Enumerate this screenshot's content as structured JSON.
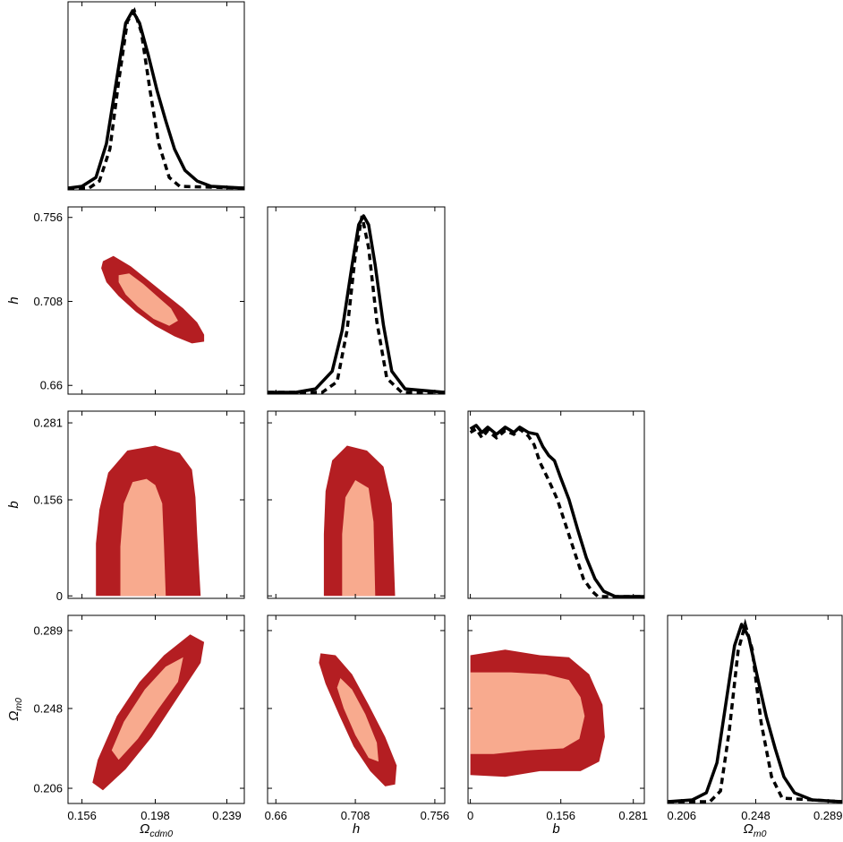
{
  "chart_data": {
    "type": "corner",
    "parameters": [
      {
        "id": "ocdm",
        "label_main": "Ω",
        "label_sub": "cdm0",
        "ticks": [
          0.156,
          0.198,
          0.239
        ],
        "tick_labels": [
          "0.156",
          "0.198",
          "0.239"
        ],
        "range": [
          0.148,
          0.249
        ]
      },
      {
        "id": "h",
        "label_main": "h",
        "label_sub": "",
        "ticks": [
          0.66,
          0.708,
          0.756
        ],
        "tick_labels": [
          "0.66",
          "0.708",
          "0.756"
        ],
        "range": [
          0.655,
          0.762
        ]
      },
      {
        "id": "b",
        "label_main": "b",
        "label_sub": "",
        "ticks": [
          0,
          0.156,
          0.281
        ],
        "tick_labels": [
          "0",
          "0.156",
          "0.281"
        ],
        "range": [
          -0.004,
          0.3
        ]
      },
      {
        "id": "om",
        "label_main": "Ω",
        "label_sub": "m0",
        "ticks": [
          0.206,
          0.248,
          0.289
        ],
        "tick_labels": [
          "0.206",
          "0.248",
          "0.289"
        ],
        "range": [
          0.198,
          0.297
        ]
      }
    ],
    "diagonal": [
      {
        "param": "ocdm",
        "solid": [
          [
            0.148,
            0.0
          ],
          [
            0.156,
            0.01
          ],
          [
            0.164,
            0.06
          ],
          [
            0.17,
            0.25
          ],
          [
            0.176,
            0.62
          ],
          [
            0.181,
            0.93
          ],
          [
            0.185,
            1.0
          ],
          [
            0.189,
            0.93
          ],
          [
            0.194,
            0.75
          ],
          [
            0.199,
            0.55
          ],
          [
            0.204,
            0.38
          ],
          [
            0.209,
            0.22
          ],
          [
            0.215,
            0.1
          ],
          [
            0.222,
            0.04
          ],
          [
            0.23,
            0.01
          ],
          [
            0.249,
            0.0
          ]
        ],
        "dashed": [
          [
            0.148,
            0.0
          ],
          [
            0.16,
            0.0
          ],
          [
            0.166,
            0.04
          ],
          [
            0.172,
            0.22
          ],
          [
            0.177,
            0.6
          ],
          [
            0.182,
            0.94
          ],
          [
            0.186,
            1.0
          ],
          [
            0.19,
            0.88
          ],
          [
            0.195,
            0.55
          ],
          [
            0.2,
            0.25
          ],
          [
            0.206,
            0.06
          ],
          [
            0.212,
            0.01
          ],
          [
            0.249,
            0.0
          ]
        ]
      },
      {
        "param": "h",
        "solid": [
          [
            0.655,
            0.0
          ],
          [
            0.672,
            0.0
          ],
          [
            0.684,
            0.02
          ],
          [
            0.694,
            0.12
          ],
          [
            0.7,
            0.35
          ],
          [
            0.706,
            0.72
          ],
          [
            0.71,
            0.95
          ],
          [
            0.713,
            1.0
          ],
          [
            0.716,
            0.95
          ],
          [
            0.72,
            0.72
          ],
          [
            0.725,
            0.38
          ],
          [
            0.73,
            0.12
          ],
          [
            0.738,
            0.02
          ],
          [
            0.762,
            0.0
          ]
        ],
        "dashed": [
          [
            0.655,
            0.0
          ],
          [
            0.688,
            0.0
          ],
          [
            0.697,
            0.06
          ],
          [
            0.703,
            0.35
          ],
          [
            0.708,
            0.78
          ],
          [
            0.712,
            1.0
          ],
          [
            0.716,
            0.82
          ],
          [
            0.721,
            0.4
          ],
          [
            0.727,
            0.08
          ],
          [
            0.736,
            0.0
          ],
          [
            0.762,
            0.0
          ]
        ]
      },
      {
        "param": "b",
        "solid": [
          [
            0.0,
            0.95
          ],
          [
            0.01,
            0.97
          ],
          [
            0.02,
            0.93
          ],
          [
            0.03,
            0.96
          ],
          [
            0.045,
            0.92
          ],
          [
            0.06,
            0.96
          ],
          [
            0.075,
            0.93
          ],
          [
            0.085,
            0.96
          ],
          [
            0.1,
            0.93
          ],
          [
            0.115,
            0.92
          ],
          [
            0.125,
            0.85
          ],
          [
            0.135,
            0.8
          ],
          [
            0.145,
            0.77
          ],
          [
            0.155,
            0.68
          ],
          [
            0.17,
            0.55
          ],
          [
            0.185,
            0.38
          ],
          [
            0.2,
            0.22
          ],
          [
            0.215,
            0.1
          ],
          [
            0.23,
            0.03
          ],
          [
            0.25,
            0.0
          ],
          [
            0.3,
            0.0
          ]
        ],
        "dashed": [
          [
            0.0,
            0.93
          ],
          [
            0.01,
            0.95
          ],
          [
            0.02,
            0.9
          ],
          [
            0.03,
            0.94
          ],
          [
            0.045,
            0.9
          ],
          [
            0.06,
            0.94
          ],
          [
            0.075,
            0.92
          ],
          [
            0.085,
            0.95
          ],
          [
            0.1,
            0.91
          ],
          [
            0.11,
            0.86
          ],
          [
            0.12,
            0.76
          ],
          [
            0.135,
            0.66
          ],
          [
            0.15,
            0.55
          ],
          [
            0.165,
            0.4
          ],
          [
            0.18,
            0.25
          ],
          [
            0.195,
            0.1
          ],
          [
            0.21,
            0.03
          ],
          [
            0.22,
            0.0
          ],
          [
            0.3,
            0.0
          ]
        ]
      },
      {
        "param": "om",
        "solid": [
          [
            0.198,
            0.0
          ],
          [
            0.212,
            0.01
          ],
          [
            0.22,
            0.05
          ],
          [
            0.226,
            0.22
          ],
          [
            0.231,
            0.55
          ],
          [
            0.236,
            0.88
          ],
          [
            0.24,
            1.0
          ],
          [
            0.244,
            0.93
          ],
          [
            0.249,
            0.7
          ],
          [
            0.254,
            0.48
          ],
          [
            0.259,
            0.3
          ],
          [
            0.264,
            0.14
          ],
          [
            0.27,
            0.05
          ],
          [
            0.28,
            0.01
          ],
          [
            0.297,
            0.0
          ]
        ],
        "dashed": [
          [
            0.198,
            0.0
          ],
          [
            0.222,
            0.0
          ],
          [
            0.228,
            0.06
          ],
          [
            0.233,
            0.4
          ],
          [
            0.238,
            0.85
          ],
          [
            0.242,
            1.0
          ],
          [
            0.246,
            0.86
          ],
          [
            0.251,
            0.45
          ],
          [
            0.257,
            0.14
          ],
          [
            0.263,
            0.02
          ],
          [
            0.297,
            0.0
          ]
        ]
      }
    ],
    "contours": [
      {
        "x": "ocdm",
        "y": "h",
        "outer": [
          [
            0.168,
            0.731
          ],
          [
            0.174,
            0.734
          ],
          [
            0.184,
            0.728
          ],
          [
            0.194,
            0.72
          ],
          [
            0.204,
            0.712
          ],
          [
            0.214,
            0.704
          ],
          [
            0.222,
            0.696
          ],
          [
            0.226,
            0.689
          ],
          [
            0.226,
            0.685
          ],
          [
            0.219,
            0.684
          ],
          [
            0.209,
            0.688
          ],
          [
            0.198,
            0.694
          ],
          [
            0.187,
            0.702
          ],
          [
            0.177,
            0.711
          ],
          [
            0.17,
            0.719
          ],
          [
            0.167,
            0.727
          ]
        ],
        "inner": [
          [
            0.177,
            0.723
          ],
          [
            0.183,
            0.724
          ],
          [
            0.191,
            0.718
          ],
          [
            0.199,
            0.711
          ],
          [
            0.207,
            0.704
          ],
          [
            0.211,
            0.697
          ],
          [
            0.206,
            0.694
          ],
          [
            0.197,
            0.698
          ],
          [
            0.188,
            0.705
          ],
          [
            0.181,
            0.712
          ],
          [
            0.177,
            0.719
          ]
        ]
      },
      {
        "x": "ocdm",
        "y": "b",
        "outer": [
          [
            0.164,
            0.0
          ],
          [
            0.164,
            0.085
          ],
          [
            0.166,
            0.14
          ],
          [
            0.171,
            0.2
          ],
          [
            0.182,
            0.236
          ],
          [
            0.198,
            0.244
          ],
          [
            0.212,
            0.232
          ],
          [
            0.219,
            0.205
          ],
          [
            0.221,
            0.16
          ],
          [
            0.222,
            0.1
          ],
          [
            0.224,
            0.0
          ]
        ],
        "inner": [
          [
            0.178,
            0.0
          ],
          [
            0.178,
            0.08
          ],
          [
            0.18,
            0.15
          ],
          [
            0.185,
            0.185
          ],
          [
            0.193,
            0.19
          ],
          [
            0.198,
            0.18
          ],
          [
            0.202,
            0.15
          ],
          [
            0.203,
            0.08
          ],
          [
            0.204,
            0.0
          ]
        ]
      },
      {
        "x": "ocdm",
        "y": "om",
        "outer": [
          [
            0.162,
            0.209
          ],
          [
            0.165,
            0.221
          ],
          [
            0.176,
            0.244
          ],
          [
            0.189,
            0.262
          ],
          [
            0.203,
            0.276
          ],
          [
            0.218,
            0.287
          ],
          [
            0.226,
            0.283
          ],
          [
            0.224,
            0.272
          ],
          [
            0.211,
            0.254
          ],
          [
            0.196,
            0.233
          ],
          [
            0.181,
            0.216
          ],
          [
            0.168,
            0.205
          ]
        ],
        "inner": [
          [
            0.173,
            0.226
          ],
          [
            0.18,
            0.241
          ],
          [
            0.192,
            0.258
          ],
          [
            0.204,
            0.27
          ],
          [
            0.214,
            0.275
          ],
          [
            0.211,
            0.262
          ],
          [
            0.2,
            0.248
          ],
          [
            0.188,
            0.232
          ],
          [
            0.177,
            0.221
          ]
        ]
      },
      {
        "x": "h",
        "y": "b",
        "outer": [
          [
            0.689,
            0.0
          ],
          [
            0.689,
            0.1
          ],
          [
            0.69,
            0.17
          ],
          [
            0.694,
            0.22
          ],
          [
            0.703,
            0.244
          ],
          [
            0.715,
            0.236
          ],
          [
            0.725,
            0.21
          ],
          [
            0.73,
            0.15
          ],
          [
            0.732,
            0.0
          ]
        ],
        "inner": [
          [
            0.7,
            0.0
          ],
          [
            0.7,
            0.1
          ],
          [
            0.702,
            0.16
          ],
          [
            0.708,
            0.188
          ],
          [
            0.716,
            0.175
          ],
          [
            0.719,
            0.12
          ],
          [
            0.72,
            0.0
          ]
        ]
      },
      {
        "x": "h",
        "y": "om",
        "outer": [
          [
            0.687,
            0.277
          ],
          [
            0.696,
            0.276
          ],
          [
            0.706,
            0.266
          ],
          [
            0.716,
            0.25
          ],
          [
            0.726,
            0.233
          ],
          [
            0.733,
            0.218
          ],
          [
            0.732,
            0.208
          ],
          [
            0.726,
            0.207
          ],
          [
            0.717,
            0.215
          ],
          [
            0.707,
            0.228
          ],
          [
            0.698,
            0.245
          ],
          [
            0.69,
            0.261
          ],
          [
            0.686,
            0.272
          ]
        ],
        "inner": [
          [
            0.699,
            0.264
          ],
          [
            0.706,
            0.258
          ],
          [
            0.714,
            0.245
          ],
          [
            0.721,
            0.23
          ],
          [
            0.722,
            0.22
          ],
          [
            0.716,
            0.222
          ],
          [
            0.708,
            0.234
          ],
          [
            0.701,
            0.248
          ],
          [
            0.697,
            0.259
          ]
        ]
      },
      {
        "x": "b",
        "y": "om",
        "outer": [
          [
            0.0,
            0.276
          ],
          [
            0.06,
            0.279
          ],
          [
            0.12,
            0.276
          ],
          [
            0.17,
            0.275
          ],
          [
            0.205,
            0.266
          ],
          [
            0.228,
            0.25
          ],
          [
            0.232,
            0.233
          ],
          [
            0.222,
            0.22
          ],
          [
            0.19,
            0.215
          ],
          [
            0.12,
            0.215
          ],
          [
            0.06,
            0.212
          ],
          [
            0.0,
            0.213
          ]
        ],
        "inner": [
          [
            0.0,
            0.267
          ],
          [
            0.07,
            0.267
          ],
          [
            0.13,
            0.266
          ],
          [
            0.17,
            0.263
          ],
          [
            0.19,
            0.254
          ],
          [
            0.197,
            0.244
          ],
          [
            0.188,
            0.232
          ],
          [
            0.16,
            0.227
          ],
          [
            0.1,
            0.226
          ],
          [
            0.04,
            0.224
          ],
          [
            0.0,
            0.224
          ]
        ]
      }
    ],
    "colors": {
      "outer": "#b41e22",
      "inner": "#f8aa8e",
      "line": "#000000"
    }
  }
}
